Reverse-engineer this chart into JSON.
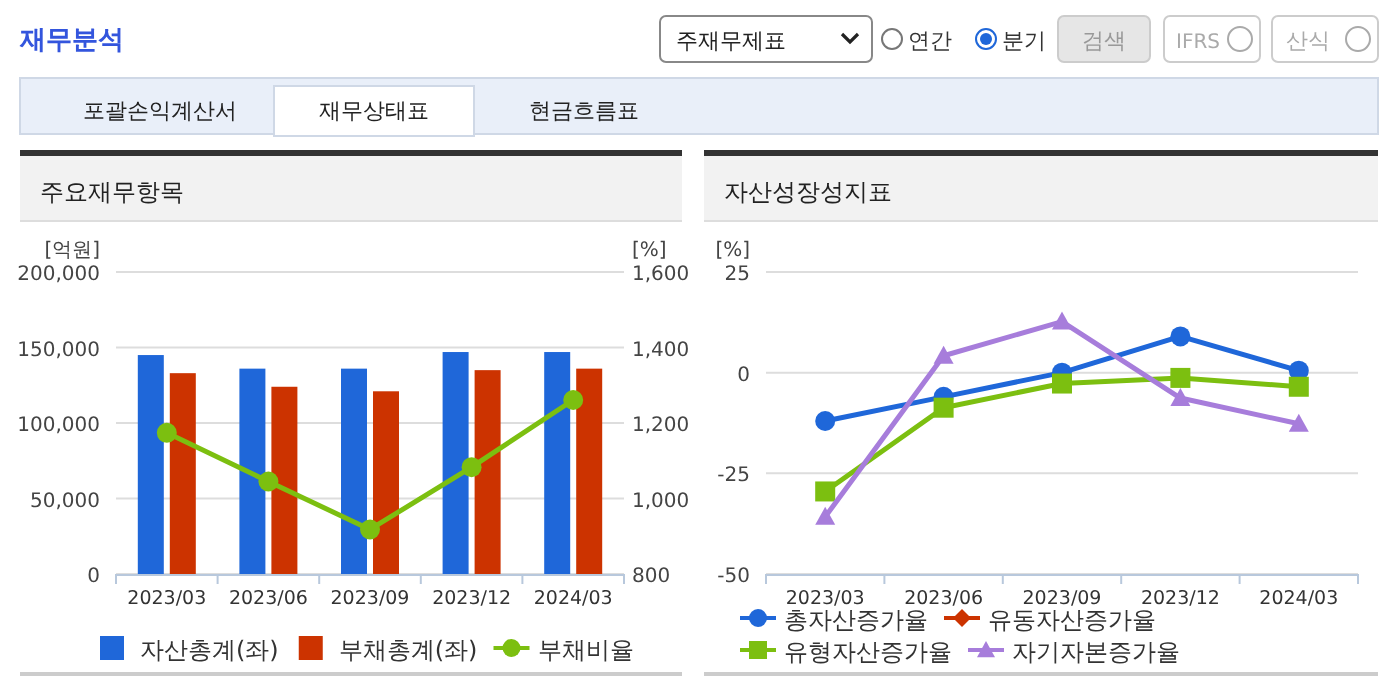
{
  "chart_data": [
    {
      "type": "bar",
      "title": "주요재무항목",
      "ylabel": "[억원]",
      "y2label": "[%]",
      "annotations": [
        "재무분석",
        "주재무제표",
        "연간",
        "분기",
        "검색",
        "IFRS",
        "산식",
        "포괄손익계산서",
        "재무상태표",
        "현금흐름표"
      ],
      "categories": [
        "2023/03",
        "2023/06",
        "2023/09",
        "2023/12",
        "2024/03"
      ],
      "series": [
        {
          "name": "자산총계(좌)",
          "color": "#1f67d9",
          "values": [
            145000,
            136000,
            136000,
            147000,
            147000
          ]
        },
        {
          "name": "부채총계(좌)",
          "color": "#cc3300",
          "values": [
            133000,
            124000,
            121000,
            135000,
            136000
          ]
        },
        {
          "name": "부채비율",
          "type": "line",
          "axis": "y2",
          "marker": "circle",
          "color": "#7cbf10",
          "values": [
            1174,
            1045,
            918,
            1083,
            1261
          ]
        }
      ],
      "ylim": [
        0,
        200000
      ],
      "yticks": [
        0,
        {
          "value": 50000,
          "label": "50,000"
        },
        {
          "value": 100000,
          "label": "100,000"
        },
        {
          "value": 150000,
          "label": "150,000"
        },
        {
          "value": 200000,
          "label": "200,000"
        }
      ],
      "y2lim": [
        800,
        1600
      ],
      "y2ticks": [
        800,
        {
          "value": 1000,
          "label": "1,000"
        },
        {
          "value": 1200,
          "label": "1,200"
        },
        {
          "value": 1400,
          "label": "1,400"
        },
        {
          "value": 1600,
          "label": "1,600"
        }
      ],
      "grid": "y",
      "legend": "bottom"
    },
    {
      "type": "line",
      "title": "자산성장성지표",
      "ylabel": "[%]",
      "categories": [
        "2023/03",
        "2023/06",
        "2023/09",
        "2023/12",
        "2024/03"
      ],
      "series": [
        {
          "name": "총자산증가율",
          "color": "#1f67d9",
          "marker": "circle",
          "values": [
            -12,
            -6,
            0,
            9,
            0.5
          ]
        },
        {
          "name": "유동자산증가율",
          "color": "#cc3300",
          "marker": "diamond",
          "values": [
            null,
            null,
            null,
            null,
            null
          ]
        },
        {
          "name": "유형자산증가율",
          "color": "#7cbf10",
          "marker": "square",
          "values": [
            -29.5,
            -8.7,
            -2.7,
            -1.3,
            -3.5
          ]
        },
        {
          "name": "자기자본증가율",
          "color": "#a77ddb",
          "marker": "triangle",
          "values": [
            -35.8,
            4.2,
            12.7,
            -6.3,
            -12.7
          ]
        }
      ],
      "ylim": [
        -50,
        25
      ],
      "yticks": [
        -50,
        -25,
        0,
        25
      ],
      "grid": "y",
      "legend": "bottom"
    }
  ]
}
